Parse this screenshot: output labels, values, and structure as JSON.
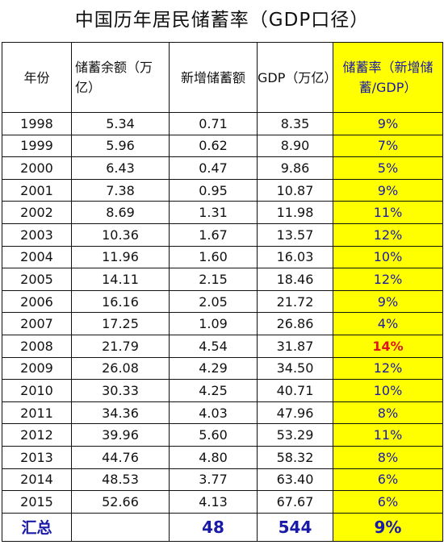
{
  "title": "中国历年居民储蓄率（GDP口径）",
  "headers": {
    "year": "年份",
    "balance": "储蓄余额（万亿）",
    "new_savings": "新增储蓄额",
    "gdp": "GDP（万亿）",
    "rate": "储蓄率（新增储蓄/GDP）"
  },
  "rows": [
    {
      "year": "1998",
      "balance": "5.34",
      "new": "0.71",
      "gdp": "8.35",
      "rate": "9%"
    },
    {
      "year": "1999",
      "balance": "5.96",
      "new": "0.62",
      "gdp": "8.90",
      "rate": "7%"
    },
    {
      "year": "2000",
      "balance": "6.43",
      "new": "0.47",
      "gdp": "9.86",
      "rate": "5%"
    },
    {
      "year": "2001",
      "balance": "7.38",
      "new": "0.95",
      "gdp": "10.87",
      "rate": "9%"
    },
    {
      "year": "2002",
      "balance": "8.69",
      "new": "1.31",
      "gdp": "11.98",
      "rate": "11%"
    },
    {
      "year": "2003",
      "balance": "10.36",
      "new": "1.67",
      "gdp": "13.57",
      "rate": "12%"
    },
    {
      "year": "2004",
      "balance": "11.96",
      "new": "1.60",
      "gdp": "16.03",
      "rate": "10%"
    },
    {
      "year": "2005",
      "balance": "14.11",
      "new": "2.15",
      "gdp": "18.46",
      "rate": "12%"
    },
    {
      "year": "2006",
      "balance": "16.16",
      "new": "2.05",
      "gdp": "21.72",
      "rate": "9%"
    },
    {
      "year": "2007",
      "balance": "17.25",
      "new": "1.09",
      "gdp": "26.86",
      "rate": "4%"
    },
    {
      "year": "2008",
      "balance": "21.79",
      "new": "4.54",
      "gdp": "31.87",
      "rate": "14%",
      "highlight": true
    },
    {
      "year": "2009",
      "balance": "26.08",
      "new": "4.29",
      "gdp": "34.50",
      "rate": "12%"
    },
    {
      "year": "2010",
      "balance": "30.33",
      "new": "4.25",
      "gdp": "40.71",
      "rate": "10%"
    },
    {
      "year": "2011",
      "balance": "34.36",
      "new": "4.03",
      "gdp": "47.96",
      "rate": "8%"
    },
    {
      "year": "2012",
      "balance": "39.96",
      "new": "5.60",
      "gdp": "53.29",
      "rate": "11%"
    },
    {
      "year": "2013",
      "balance": "44.76",
      "new": "4.80",
      "gdp": "58.32",
      "rate": "8%"
    },
    {
      "year": "2014",
      "balance": "48.53",
      "new": "3.77",
      "gdp": "63.40",
      "rate": "6%"
    },
    {
      "year": "2015",
      "balance": "52.66",
      "new": "4.13",
      "gdp": "67.67",
      "rate": "6%"
    }
  ],
  "total": {
    "label": "汇总",
    "new": "48",
    "gdp": "544",
    "rate": "9%"
  },
  "colors": {
    "highlight_bg": "#ffff00",
    "blue_text": "#1a1aa8",
    "red_text": "#e0141e"
  }
}
